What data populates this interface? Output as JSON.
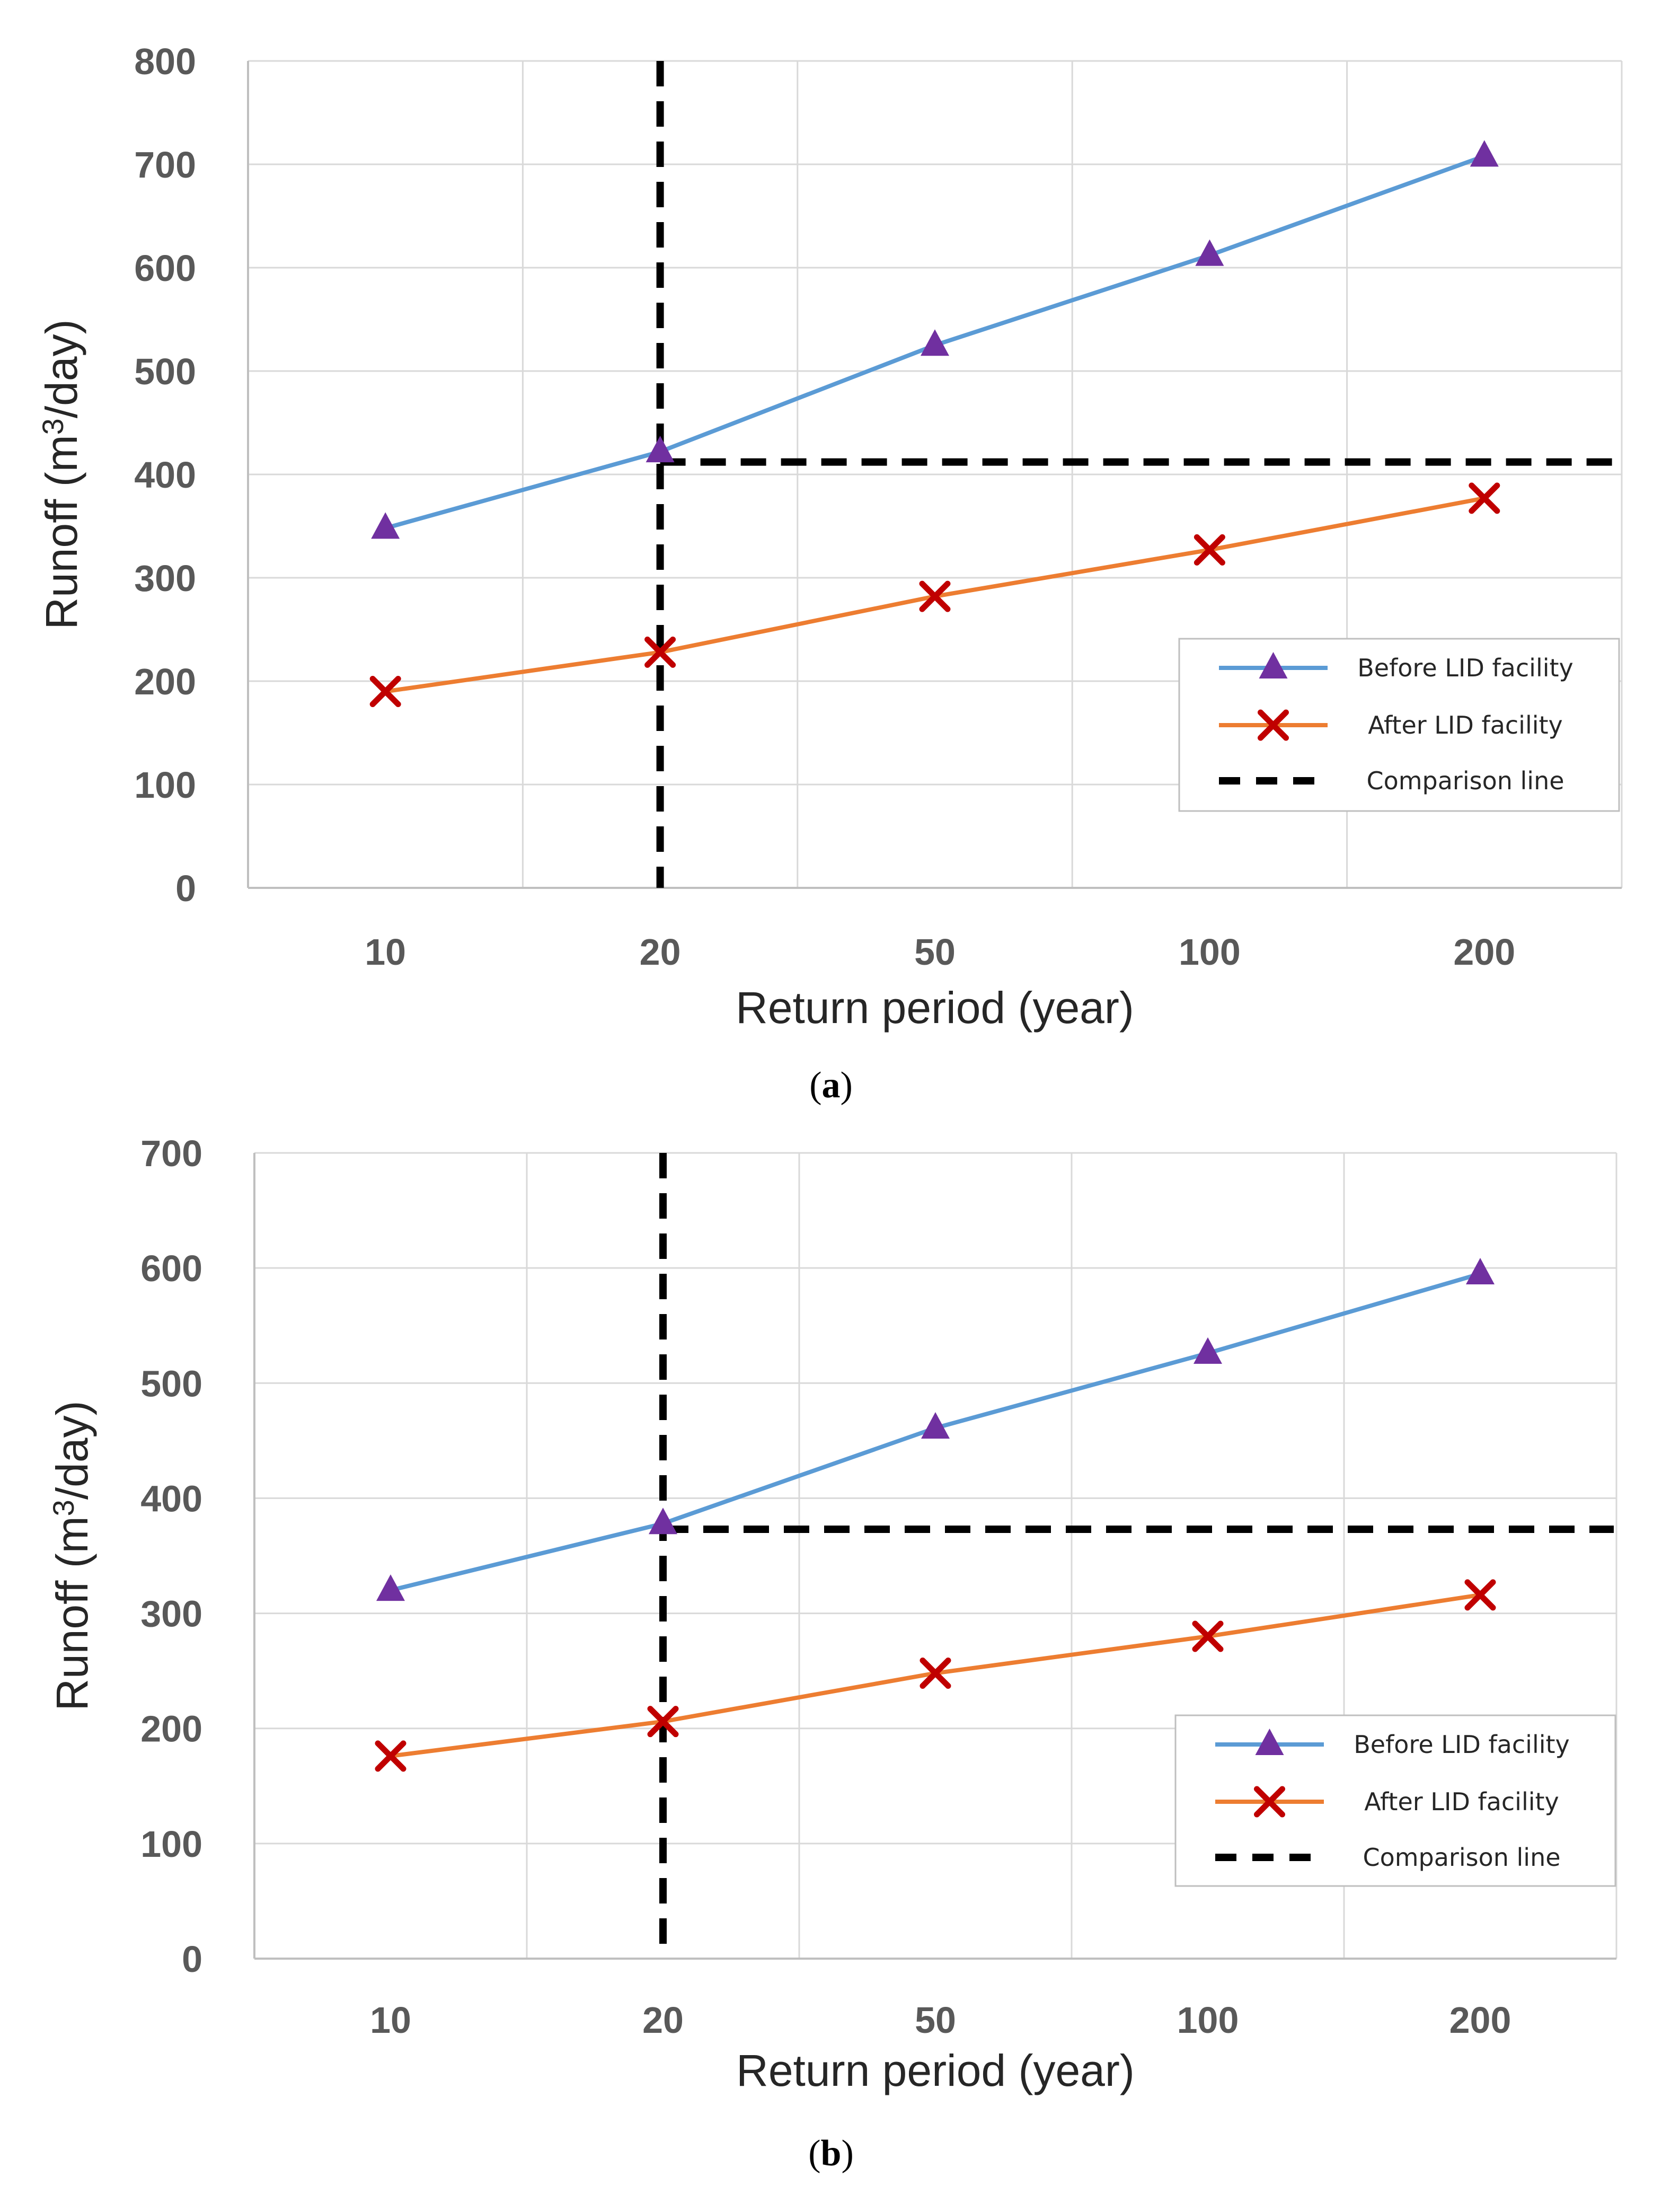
{
  "chart_data": [
    {
      "type": "line",
      "caption": "a",
      "categories": [
        "10",
        "20",
        "50",
        "100",
        "200"
      ],
      "series": [
        {
          "name": "Before LID facility",
          "values": [
            348,
            422,
            525,
            612,
            708
          ],
          "color": "#5b9bd5",
          "marker_color": "#7030a0"
        },
        {
          "name": "After LID facility",
          "values": [
            190,
            228,
            282,
            327,
            377
          ],
          "color": "#ed7d31",
          "marker_color": "#c00000"
        }
      ],
      "reference_lines": [
        {
          "name": "Comparison line",
          "orientation": "horizontal",
          "value": 412,
          "x_start_category": "20",
          "color": "#000000"
        },
        {
          "name": "Comparison line",
          "orientation": "vertical",
          "category": "20",
          "color": "#000000"
        }
      ],
      "xlabel": "Return period  (year)",
      "ylabel": "Runoff  (m³/day)",
      "ylim": [
        0,
        800
      ],
      "yticks": [
        0,
        100,
        200,
        300,
        400,
        500,
        600,
        700,
        800
      ],
      "grid": true,
      "legend": [
        "Before LID facility",
        "After LID facility",
        "Comparison line"
      ]
    },
    {
      "type": "line",
      "caption": "b",
      "categories": [
        "10",
        "20",
        "50",
        "100",
        "200"
      ],
      "series": [
        {
          "name": "Before LID facility",
          "values": [
            320,
            378,
            461,
            526,
            595
          ],
          "color": "#5b9bd5",
          "marker_color": "#7030a0"
        },
        {
          "name": "After LID facility",
          "values": [
            176,
            206,
            248,
            280,
            316
          ],
          "color": "#ed7d31",
          "marker_color": "#c00000"
        }
      ],
      "reference_lines": [
        {
          "name": "Comparison line",
          "orientation": "horizontal",
          "value": 373,
          "x_start_category": "20",
          "color": "#000000"
        },
        {
          "name": "Comparison line",
          "orientation": "vertical",
          "category": "20",
          "color": "#000000"
        }
      ],
      "xlabel": "Return period  (year)",
      "ylabel": "Runoff  (m³/day)",
      "ylim": [
        0,
        700
      ],
      "yticks": [
        0,
        100,
        200,
        300,
        400,
        500,
        600,
        700
      ],
      "grid": true,
      "legend": [
        "Before LID facility",
        "After LID facility",
        "Comparison line"
      ]
    }
  ]
}
